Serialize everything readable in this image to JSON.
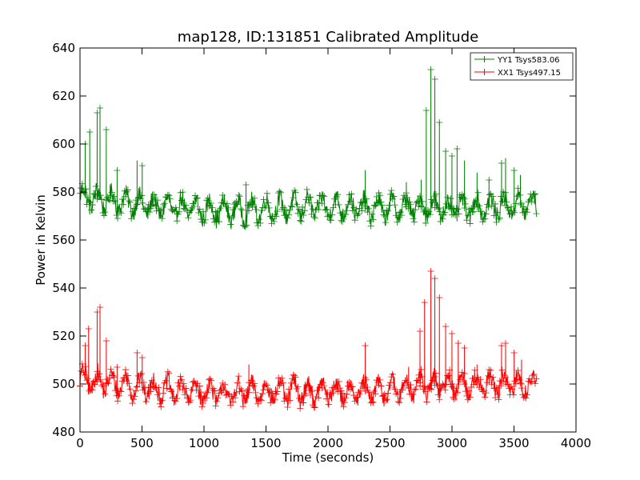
{
  "chart_data": {
    "type": "line",
    "title": "map128, ID:131851 Calibrated Amplitude",
    "xlabel": "Time (seconds)",
    "ylabel": "Power in Kelvin",
    "xlim": [
      0,
      4000
    ],
    "ylim": [
      480,
      640
    ],
    "xticks": [
      "0",
      "500",
      "1000",
      "1500",
      "2000",
      "2500",
      "3000",
      "3500",
      "4000"
    ],
    "yticks": [
      "480",
      "500",
      "520",
      "540",
      "560",
      "580",
      "600",
      "620",
      "640"
    ],
    "grid": false,
    "legend_position": "top-right",
    "marker": "+",
    "series": [
      {
        "name": "YY1 Tsys583.06",
        "color": "#008000",
        "baseline": [
          [
            0,
            578
          ],
          [
            300,
            576
          ],
          [
            600,
            574
          ],
          [
            900,
            573
          ],
          [
            1200,
            572
          ],
          [
            1500,
            573
          ],
          [
            1800,
            574
          ],
          [
            2100,
            574
          ],
          [
            2400,
            573
          ],
          [
            2700,
            574
          ],
          [
            3000,
            573
          ],
          [
            3300,
            574
          ],
          [
            3680,
            575
          ]
        ],
        "spikes": [
          [
            40,
            600
          ],
          [
            80,
            605
          ],
          [
            140,
            613
          ],
          [
            160,
            615
          ],
          [
            210,
            606
          ],
          [
            300,
            589
          ],
          [
            460,
            593
          ],
          [
            500,
            591
          ],
          [
            1340,
            583
          ],
          [
            2300,
            589
          ],
          [
            2630,
            584
          ],
          [
            2750,
            585
          ],
          [
            2790,
            614
          ],
          [
            2830,
            631
          ],
          [
            2860,
            627
          ],
          [
            2900,
            609
          ],
          [
            2950,
            597
          ],
          [
            3000,
            595
          ],
          [
            3040,
            598
          ],
          [
            3100,
            593
          ],
          [
            3200,
            588
          ],
          [
            3300,
            585
          ],
          [
            3400,
            592
          ],
          [
            3430,
            594
          ],
          [
            3500,
            589
          ],
          [
            3550,
            587
          ]
        ]
      },
      {
        "name": "XX1 Tsys497.15",
        "color": "#ff0000",
        "baseline": [
          [
            0,
            502
          ],
          [
            300,
            500
          ],
          [
            600,
            498
          ],
          [
            900,
            497
          ],
          [
            1200,
            496
          ],
          [
            1500,
            497
          ],
          [
            1800,
            497
          ],
          [
            2100,
            497
          ],
          [
            2400,
            497
          ],
          [
            2700,
            499
          ],
          [
            3000,
            500
          ],
          [
            3300,
            500
          ],
          [
            3680,
            500
          ]
        ],
        "spikes": [
          [
            40,
            516
          ],
          [
            70,
            523
          ],
          [
            140,
            530
          ],
          [
            160,
            532
          ],
          [
            210,
            518
          ],
          [
            300,
            507
          ],
          [
            460,
            513
          ],
          [
            500,
            511
          ],
          [
            1360,
            508
          ],
          [
            2300,
            516
          ],
          [
            2650,
            507
          ],
          [
            2740,
            522
          ],
          [
            2780,
            534
          ],
          [
            2830,
            547
          ],
          [
            2860,
            544
          ],
          [
            2900,
            536
          ],
          [
            2950,
            524
          ],
          [
            3000,
            521
          ],
          [
            3050,
            517
          ],
          [
            3100,
            515
          ],
          [
            3200,
            508
          ],
          [
            3300,
            506
          ],
          [
            3400,
            516
          ],
          [
            3430,
            517
          ],
          [
            3500,
            513
          ],
          [
            3560,
            510
          ]
        ]
      }
    ]
  }
}
